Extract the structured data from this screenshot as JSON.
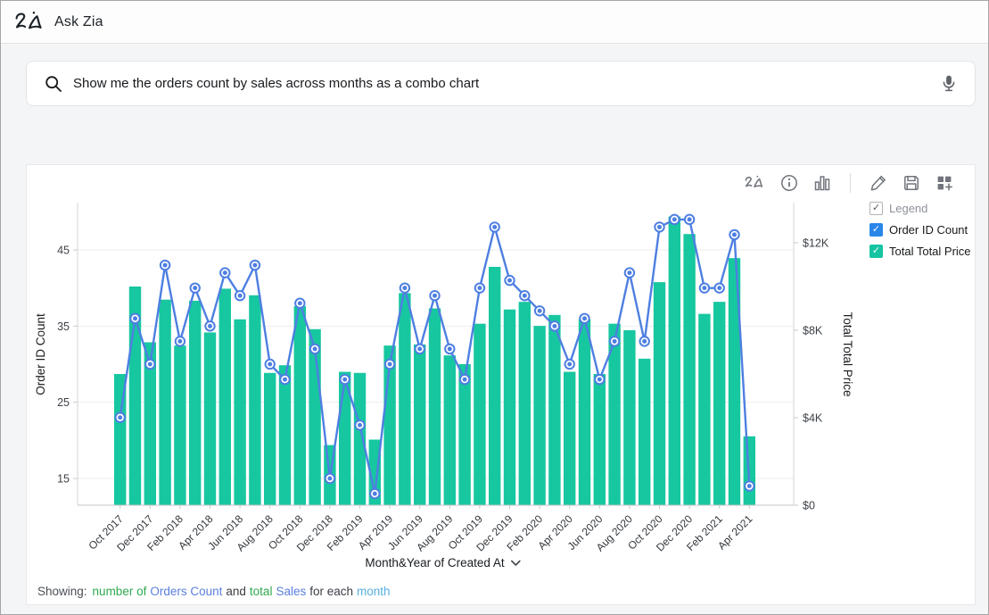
{
  "header": {
    "app_title": "Ask Zia"
  },
  "search": {
    "query": "Show me the orders count by sales across months as a combo chart",
    "search_icon": "magnifier",
    "mic_icon": "microphone"
  },
  "toolbar": {
    "icons": [
      "zia-icon",
      "info-icon",
      "column-chart-icon",
      "edit-icon",
      "save-icon",
      "add-widget-icon"
    ]
  },
  "legend": {
    "title": "Legend",
    "items": [
      {
        "label": "Order ID Count",
        "color": "#2a87e9",
        "checked": true
      },
      {
        "label": "Total Total Price",
        "color": "#15c5a1",
        "checked": true
      }
    ]
  },
  "chart_data": {
    "type": "combo",
    "title": "",
    "xlabel": "Month&Year of Created At",
    "x_field_dropdown": "Month&Year of Created At",
    "categories": [
      "Oct 2017",
      "Nov 2017",
      "Dec 2017",
      "Jan 2018",
      "Feb 2018",
      "Mar 2018",
      "Apr 2018",
      "May 2018",
      "Jun 2018",
      "Jul 2018",
      "Aug 2018",
      "Sep 2018",
      "Oct 2018",
      "Nov 2018",
      "Dec 2018",
      "Jan 2019",
      "Feb 2019",
      "Mar 2019",
      "Apr 2019",
      "May 2019",
      "Jun 2019",
      "Jul 2019",
      "Aug 2019",
      "Sep 2019",
      "Oct 2019",
      "Nov 2019",
      "Dec 2019",
      "Jan 2020",
      "Feb 2020",
      "Mar 2020",
      "Apr 2020",
      "May 2020",
      "Jun 2020",
      "Jul 2020",
      "Aug 2020",
      "Sep 2020",
      "Oct 2020",
      "Nov 2020",
      "Dec 2020",
      "Jan 2021",
      "Feb 2021",
      "Mar 2021",
      "Apr 2021"
    ],
    "x_tick_labels_shown": [
      "Oct 2017",
      "Dec 2017",
      "Feb 2018",
      "Apr 2018",
      "Jun 2018",
      "Aug 2018",
      "Oct 2018",
      "Dec 2018",
      "Feb 2019",
      "Apr 2019",
      "Jun 2019",
      "Aug 2019",
      "Oct 2019",
      "Dec 2019",
      "Feb 2020",
      "Apr 2020",
      "Jun 2020",
      "Aug 2020",
      "Oct 2020",
      "Dec 2020",
      "Feb 2021",
      "Apr 2021"
    ],
    "series": [
      {
        "name": "Order ID Count",
        "type": "line",
        "axis": "left",
        "color": "#4e7fe1",
        "values": [
          23,
          36,
          30,
          43,
          33,
          40,
          35,
          42,
          39,
          43,
          30,
          28,
          38,
          32,
          15,
          28,
          22,
          13,
          30,
          40,
          32,
          39,
          32,
          28,
          40,
          48,
          41,
          39,
          37,
          35,
          30,
          36,
          28,
          33,
          42,
          33,
          48,
          49,
          49,
          40,
          40,
          47,
          14
        ]
      },
      {
        "name": "Total Total Price",
        "type": "bar",
        "axis": "right",
        "color": "#17c7a0",
        "values": [
          6000,
          10000,
          7450,
          9400,
          7300,
          9350,
          7900,
          9900,
          8500,
          9600,
          6050,
          6400,
          9100,
          8050,
          2750,
          6100,
          6050,
          3000,
          7300,
          9700,
          7350,
          9000,
          6850,
          6450,
          8300,
          10900,
          8950,
          9300,
          8200,
          8700,
          6100,
          8500,
          6000,
          8300,
          8000,
          6700,
          10200,
          13200,
          12400,
          8750,
          9300,
          11300,
          3150
        ]
      }
    ],
    "left_axis": {
      "label": "Order ID Count",
      "ticks": [
        45,
        35,
        25,
        15
      ],
      "range": [
        11.5,
        51.3
      ]
    },
    "right_axis": {
      "label": "Total Total Price",
      "ticks": [
        {
          "label": "$0",
          "value": 0
        },
        {
          "label": "$4K",
          "value": 4000
        },
        {
          "label": "$8K",
          "value": 8000
        },
        {
          "label": "$12K",
          "value": 12000
        }
      ],
      "range": [
        0,
        13850
      ]
    },
    "grid": "horizontal"
  },
  "footer": {
    "showing_label": "Showing:",
    "parts": [
      {
        "text": "number of",
        "color": "#2fa94f"
      },
      {
        "text": "Orders Count",
        "color": "#5b7fdd"
      },
      {
        "text": "and",
        "color": "#3a3e44"
      },
      {
        "text": "total",
        "color": "#2fa94f"
      },
      {
        "text": "Sales",
        "color": "#5b7fdd"
      },
      {
        "text": "for each",
        "color": "#3a3e44"
      },
      {
        "text": "month",
        "color": "#56aee0"
      }
    ]
  },
  "colors": {
    "bar": "#17c7a0",
    "line": "#4e7fe1",
    "page_bg": "#f4f5f7",
    "card_bg": "#ffffff",
    "grid_line": "#ededee",
    "axis_line": "#d4d4d6"
  }
}
